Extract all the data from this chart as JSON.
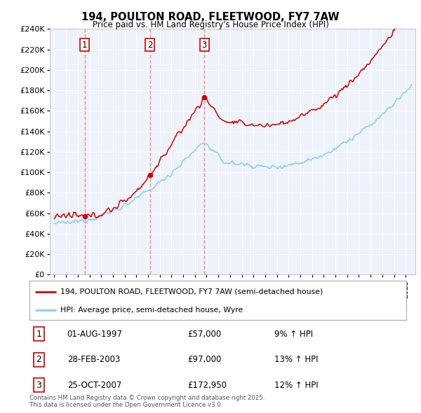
{
  "title": "194, POULTON ROAD, FLEETWOOD, FY7 7AW",
  "subtitle": "Price paid vs. HM Land Registry's House Price Index (HPI)",
  "legend_line1": "194, POULTON ROAD, FLEETWOOD, FY7 7AW (semi-detached house)",
  "legend_line2": "HPI: Average price, semi-detached house, Wyre",
  "transactions": [
    {
      "num": 1,
      "date": "01-AUG-1997",
      "price": 57000,
      "pct": "9%",
      "dir": "↑",
      "year": 1997.58
    },
    {
      "num": 2,
      "date": "28-FEB-2003",
      "price": 97000,
      "pct": "13%",
      "dir": "↑",
      "year": 2003.16
    },
    {
      "num": 3,
      "date": "25-OCT-2007",
      "price": 172950,
      "pct": "12%",
      "dir": "↑",
      "year": 2007.81
    }
  ],
  "footer": "Contains HM Land Registry data © Crown copyright and database right 2025.\nThis data is licensed under the Open Government Licence v3.0.",
  "price_line_color": "#cc0000",
  "hpi_line_color": "#87CEEB",
  "dashed_color": "#ff8888",
  "dot_color": "#cc0000",
  "background_color": "#ffffff",
  "plot_bg_color": "#eef2fa",
  "grid_color": "#ffffff",
  "ylim": [
    0,
    240000
  ],
  "ytick_step": 20000,
  "xlim_left": 1994.6,
  "xlim_right": 2025.8
}
